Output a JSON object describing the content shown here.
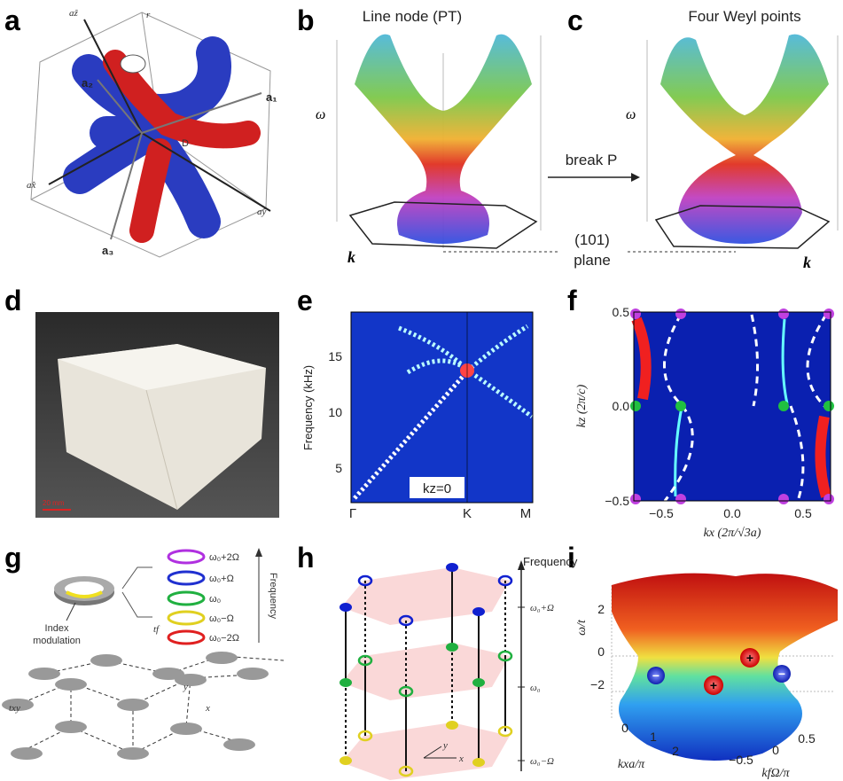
{
  "panels": {
    "a": {
      "letter": "a",
      "labels": {
        "z": "aẑ",
        "r": "r",
        "a2": "a₂",
        "a1": "a₁",
        "D": "D",
        "x": "ax̂",
        "y": "aŷ",
        "a3": "a₃"
      }
    },
    "b": {
      "letter": "b",
      "title": "Line node (PT)",
      "omega": "ω",
      "k": "k"
    },
    "bc": {
      "break": "break P",
      "plane": [
        "(101)",
        "plane"
      ]
    },
    "c": {
      "letter": "c",
      "title": "Four Weyl points",
      "omega": "ω",
      "k": "k"
    },
    "d": {
      "letter": "d",
      "scale": "20 mm"
    },
    "e": {
      "letter": "e",
      "ylabel": "Frequency (kHz)",
      "yticks": [
        "5",
        "10",
        "15"
      ],
      "xticks": [
        "Γ",
        "K",
        "M"
      ],
      "note": "kz=0"
    },
    "f": {
      "letter": "f",
      "ylabel": "kz (2π/c)",
      "xlabel": "kx (2π/√3a)",
      "yticks": [
        "0.5",
        "0.0",
        "−0.5"
      ],
      "xticks": [
        "−0.5",
        "0.0",
        "0.5"
      ]
    },
    "g": {
      "letter": "g",
      "levels": [
        "ω₀+2Ω",
        "ω₀+Ω",
        "ω₀",
        "ω₀−Ω",
        "ω₀−2Ω"
      ],
      "freq": "Frequency",
      "index": [
        "Index",
        "modulation"
      ],
      "tf": "tf",
      "txy": "txy",
      "y": "y",
      "x": "x"
    },
    "h": {
      "letter": "h",
      "freq": "Frequency",
      "levels": [
        "ω₀+Ω",
        "ω₀",
        "ω₀−Ω"
      ],
      "y": "y",
      "x": "x"
    },
    "i": {
      "letter": "i",
      "zlabel": "ω/t",
      "zticks": [
        "2",
        "0",
        "−2"
      ],
      "xlabel": "kxa/π",
      "xticks": [
        "0",
        "1",
        "2"
      ],
      "ylabel": "kfΩ/π",
      "yticks": [
        "−0.5",
        "0",
        "0.5"
      ],
      "plus": "+",
      "minus": "−"
    }
  }
}
